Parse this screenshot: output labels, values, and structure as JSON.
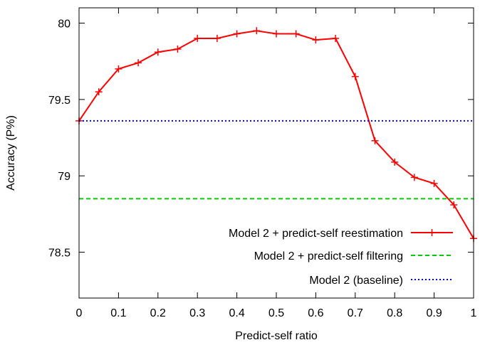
{
  "chart_data": {
    "type": "line",
    "xlabel": "Predict-self ratio",
    "ylabel": "Accuracy (P%)",
    "xlim": [
      0,
      1
    ],
    "ylim": [
      78.2,
      80.1
    ],
    "grid": false,
    "legend_position": "bottom-right",
    "x_ticks": [
      0,
      0.1,
      0.2,
      0.3,
      0.4,
      0.5,
      0.6,
      0.7,
      0.8,
      0.9,
      1
    ],
    "x_tick_labels": [
      "0",
      "0.1",
      "0.2",
      "0.3",
      "0.4",
      "0.5",
      "0.6",
      "0.7",
      "0.8",
      "0.9",
      "1"
    ],
    "y_ticks": [
      78.5,
      79,
      79.5,
      80
    ],
    "y_tick_labels": [
      "78.5",
      "79",
      "79.5",
      "80"
    ],
    "series": [
      {
        "name": "Model 2 + predict-self reestimation",
        "style": "solid-with-plus-markers",
        "color": "#ff0000",
        "x": [
          0,
          0.05,
          0.1,
          0.15,
          0.2,
          0.25,
          0.3,
          0.35,
          0.4,
          0.45,
          0.5,
          0.55,
          0.6,
          0.65,
          0.7,
          0.75,
          0.8,
          0.85,
          0.9,
          0.95,
          1
        ],
        "y": [
          79.36,
          79.55,
          79.7,
          79.74,
          79.81,
          79.83,
          79.9,
          79.9,
          79.93,
          79.95,
          79.93,
          79.93,
          79.89,
          79.9,
          79.65,
          79.23,
          79.09,
          78.99,
          78.95,
          78.81,
          78.59
        ]
      },
      {
        "name": "Model 2 + predict-self filtering",
        "style": "dashed",
        "color": "#00cc00",
        "x": [
          0,
          1
        ],
        "y": [
          78.85,
          78.85
        ]
      },
      {
        "name": "Model 2 (baseline)",
        "style": "dotted",
        "color": "#0000ee",
        "x": [
          0,
          1
        ],
        "y": [
          79.36,
          79.36
        ]
      }
    ]
  }
}
